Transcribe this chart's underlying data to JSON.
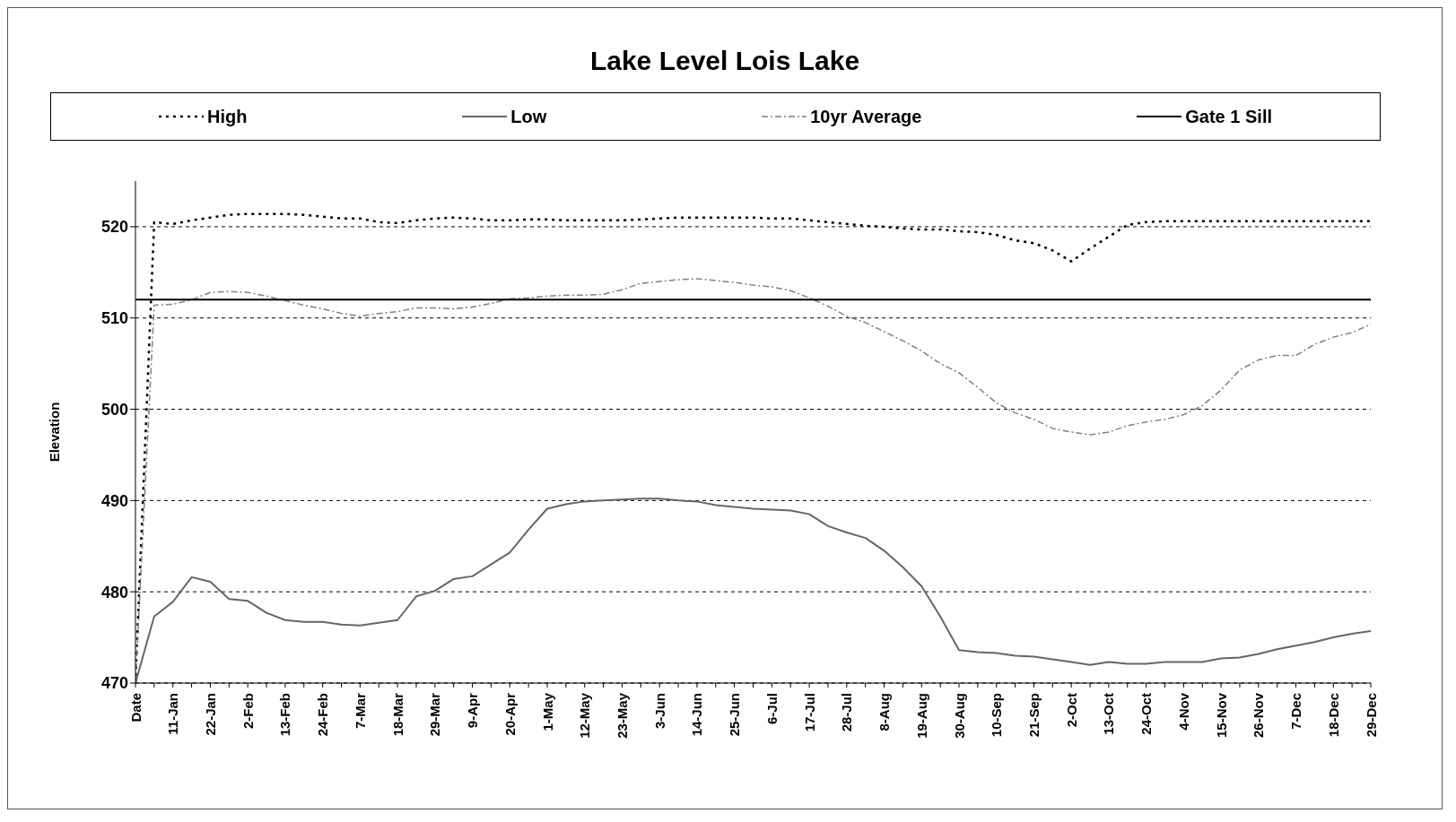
{
  "chart_data": {
    "type": "line",
    "title": "Lake Level Lois Lake",
    "ylabel": "Elevation",
    "categories": [
      "Date",
      null,
      "11-Jan",
      null,
      "22-Jan",
      null,
      "2-Feb",
      null,
      "13-Feb",
      null,
      "24-Feb",
      null,
      "7-Mar",
      null,
      "18-Mar",
      null,
      "29-Mar",
      null,
      "9-Apr",
      null,
      "20-Apr",
      null,
      "1-May",
      null,
      "12-May",
      null,
      "23-May",
      null,
      "3-Jun",
      null,
      "14-Jun",
      null,
      "25-Jun",
      null,
      "6-Jul",
      null,
      "17-Jul",
      null,
      "28-Jul",
      null,
      "8-Aug",
      null,
      "19-Aug",
      null,
      "30-Aug",
      null,
      "10-Sep",
      null,
      "21-Sep",
      null,
      "2-Oct",
      null,
      "13-Oct",
      null,
      "24-Oct",
      null,
      "4-Nov",
      null,
      "15-Nov",
      null,
      "26-Nov",
      null,
      "7-Dec",
      null,
      "18-Dec",
      null,
      "29-Dec"
    ],
    "series": [
      {
        "name": "High",
        "color": "#000000",
        "line_style": "dotted",
        "values": [
          470,
          520.5,
          520.3,
          520.7,
          521.0,
          521.3,
          521.4,
          521.4,
          521.4,
          521.3,
          521.1,
          520.9,
          520.9,
          520.5,
          520.4,
          520.7,
          520.9,
          521.0,
          520.9,
          520.7,
          520.7,
          520.8,
          520.8,
          520.7,
          520.7,
          520.7,
          520.7,
          520.8,
          520.9,
          521.0,
          521.0,
          521.0,
          521.0,
          521.0,
          520.9,
          520.9,
          520.7,
          520.5,
          520.3,
          520.1,
          520.0,
          519.8,
          519.7,
          519.7,
          519.5,
          519.4,
          519.1,
          518.5,
          518.2,
          517.4,
          516.2,
          517.6,
          518.9,
          520.2,
          520.5,
          520.6,
          520.6,
          520.6,
          520.6,
          520.6,
          520.6,
          520.6,
          520.6,
          520.6,
          520.6,
          520.6,
          520.6
        ]
      },
      {
        "name": "Low",
        "color": "#666666",
        "line_style": "solid",
        "values": [
          470,
          477.3,
          478.9,
          481.6,
          481.1,
          479.2,
          479.0,
          477.7,
          476.9,
          476.7,
          476.7,
          476.4,
          476.3,
          476.6,
          476.9,
          479.5,
          480.1,
          481.4,
          481.7,
          483.0,
          484.3,
          486.8,
          489.1,
          489.6,
          489.9,
          490.0,
          490.1,
          490.2,
          490.2,
          490.0,
          489.9,
          489.5,
          489.3,
          489.1,
          489.0,
          488.9,
          488.5,
          487.2,
          486.5,
          485.9,
          484.5,
          482.7,
          480.6,
          477.3,
          473.6,
          473.4,
          473.3,
          473.0,
          472.9,
          472.6,
          472.3,
          472.0,
          472.3,
          472.1,
          472.1,
          472.3,
          472.3,
          472.3,
          472.7,
          472.8,
          473.2,
          473.7,
          474.1,
          474.5,
          475.0,
          475.4,
          475.7
        ]
      },
      {
        "name": "10yr Average",
        "color": "#808080",
        "line_style": "dashed",
        "values": [
          470,
          511.4,
          511.5,
          512.0,
          512.8,
          512.9,
          512.8,
          512.4,
          511.9,
          511.4,
          511.0,
          510.5,
          510.2,
          510.5,
          510.7,
          511.1,
          511.1,
          511.0,
          511.2,
          511.6,
          512.1,
          512.2,
          512.4,
          512.5,
          512.5,
          512.6,
          513.1,
          513.8,
          514.0,
          514.2,
          514.3,
          514.1,
          513.9,
          513.6,
          513.4,
          513.0,
          512.2,
          511.3,
          510.2,
          509.5,
          508.5,
          507.5,
          506.4,
          505.0,
          504.0,
          502.4,
          500.7,
          499.6,
          498.9,
          497.9,
          497.5,
          497.2,
          497.5,
          498.2,
          498.6,
          498.9,
          499.4,
          500.4,
          502.1,
          504.3,
          505.4,
          505.9,
          505.9,
          507.1,
          507.9,
          508.4,
          509.3
        ]
      },
      {
        "name": "Gate 1 Sill",
        "color": "#000000",
        "line_style": "solid",
        "values": [
          512,
          512,
          512,
          512,
          512,
          512,
          512,
          512,
          512,
          512,
          512,
          512,
          512,
          512,
          512,
          512,
          512,
          512,
          512,
          512,
          512,
          512,
          512,
          512,
          512,
          512,
          512,
          512,
          512,
          512,
          512,
          512,
          512,
          512,
          512,
          512,
          512,
          512,
          512,
          512,
          512,
          512,
          512,
          512,
          512,
          512,
          512,
          512,
          512,
          512,
          512,
          512,
          512,
          512,
          512,
          512,
          512,
          512,
          512,
          512,
          512,
          512,
          512,
          512,
          512,
          512,
          512
        ]
      }
    ],
    "ylim": [
      470,
      525
    ],
    "yticks": [
      470,
      480,
      490,
      500,
      510,
      520
    ],
    "grid": "y",
    "legend": "top",
    "marker": "none"
  }
}
